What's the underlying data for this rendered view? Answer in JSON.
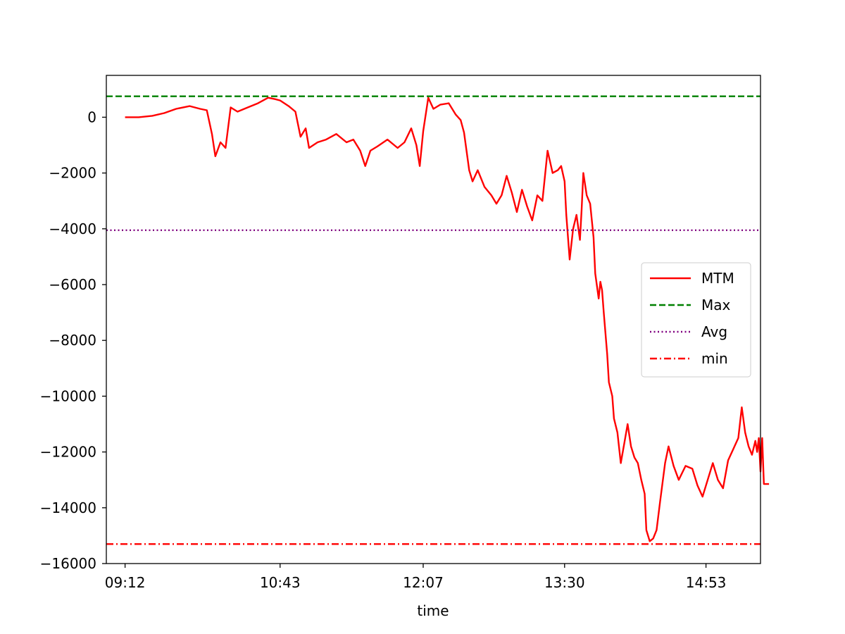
{
  "chart_data": {
    "type": "line",
    "title": "",
    "xlabel": "time",
    "ylabel": "",
    "x_range": [
      "09:01",
      "15:25"
    ],
    "ylim": [
      -16000,
      1500
    ],
    "x_ticks": [
      "09:12",
      "10:43",
      "12:07",
      "13:30",
      "14:53"
    ],
    "y_ticks": [
      0,
      -2000,
      -4000,
      -6000,
      -8000,
      -10000,
      -12000,
      -14000,
      -16000
    ],
    "y_tick_labels": [
      "0",
      "−2000",
      "−4000",
      "−6000",
      "−8000",
      "−10000",
      "−12000",
      "−14000",
      "−16000"
    ],
    "grid": false,
    "legend": {
      "placement": "center-right",
      "entries": [
        "MTM",
        "Max",
        "Avg",
        "min"
      ]
    },
    "series": [
      {
        "name": "MTM",
        "color": "#ff0000",
        "style": "solid",
        "points": [
          [
            "09:12",
            0
          ],
          [
            "09:20",
            0
          ],
          [
            "09:28",
            50
          ],
          [
            "09:35",
            150
          ],
          [
            "09:42",
            300
          ],
          [
            "09:50",
            400
          ],
          [
            "09:56",
            300
          ],
          [
            "10:00",
            250
          ],
          [
            "10:03",
            -600
          ],
          [
            "10:05",
            -1400
          ],
          [
            "10:08",
            -900
          ],
          [
            "10:11",
            -1100
          ],
          [
            "10:14",
            350
          ],
          [
            "10:18",
            200
          ],
          [
            "10:24",
            350
          ],
          [
            "10:30",
            500
          ],
          [
            "10:36",
            700
          ],
          [
            "10:40",
            650
          ],
          [
            "10:43",
            600
          ],
          [
            "10:48",
            400
          ],
          [
            "10:52",
            200
          ],
          [
            "10:55",
            -700
          ],
          [
            "10:58",
            -400
          ],
          [
            "11:00",
            -1100
          ],
          [
            "11:05",
            -900
          ],
          [
            "11:10",
            -800
          ],
          [
            "11:16",
            -600
          ],
          [
            "11:22",
            -900
          ],
          [
            "11:26",
            -800
          ],
          [
            "11:30",
            -1200
          ],
          [
            "11:33",
            -1750
          ],
          [
            "11:36",
            -1200
          ],
          [
            "11:40",
            -1050
          ],
          [
            "11:46",
            -800
          ],
          [
            "11:52",
            -1100
          ],
          [
            "11:56",
            -900
          ],
          [
            "12:00",
            -400
          ],
          [
            "12:03",
            -1000
          ],
          [
            "12:05",
            -1750
          ],
          [
            "12:07",
            -500
          ],
          [
            "12:10",
            700
          ],
          [
            "12:13",
            300
          ],
          [
            "12:17",
            450
          ],
          [
            "12:22",
            500
          ],
          [
            "12:26",
            100
          ],
          [
            "12:29",
            -100
          ],
          [
            "12:31",
            -550
          ],
          [
            "12:34",
            -1900
          ],
          [
            "12:36",
            -2300
          ],
          [
            "12:39",
            -1900
          ],
          [
            "12:43",
            -2500
          ],
          [
            "12:47",
            -2800
          ],
          [
            "12:50",
            -3100
          ],
          [
            "12:53",
            -2800
          ],
          [
            "12:56",
            -2100
          ],
          [
            "12:59",
            -2700
          ],
          [
            "13:02",
            -3400
          ],
          [
            "13:05",
            -2600
          ],
          [
            "13:08",
            -3200
          ],
          [
            "13:11",
            -3700
          ],
          [
            "13:14",
            -2800
          ],
          [
            "13:17",
            -3000
          ],
          [
            "13:20",
            -1200
          ],
          [
            "13:23",
            -2000
          ],
          [
            "13:26",
            -1900
          ],
          [
            "13:28",
            -1750
          ],
          [
            "13:30",
            -2300
          ],
          [
            "13:31",
            -3500
          ],
          [
            "13:33",
            -5100
          ],
          [
            "13:35",
            -4000
          ],
          [
            "13:37",
            -3500
          ],
          [
            "13:39",
            -4400
          ],
          [
            "13:40",
            -3300
          ],
          [
            "13:41",
            -2000
          ],
          [
            "13:43",
            -2800
          ],
          [
            "13:45",
            -3100
          ],
          [
            "13:47",
            -4300
          ],
          [
            "13:48",
            -5600
          ],
          [
            "13:50",
            -6500
          ],
          [
            "13:51",
            -5900
          ],
          [
            "13:52",
            -6200
          ],
          [
            "13:53",
            -7000
          ],
          [
            "13:55",
            -8500
          ],
          [
            "13:56",
            -9500
          ],
          [
            "13:58",
            -10000
          ],
          [
            "13:59",
            -10800
          ],
          [
            "14:01",
            -11300
          ],
          [
            "14:03",
            -12400
          ],
          [
            "14:05",
            -11700
          ],
          [
            "14:07",
            -11000
          ],
          [
            "14:09",
            -11800
          ],
          [
            "14:11",
            -12200
          ],
          [
            "14:13",
            -12400
          ],
          [
            "14:15",
            -13000
          ],
          [
            "14:17",
            -13500
          ],
          [
            "14:18",
            -14800
          ],
          [
            "14:20",
            -15200
          ],
          [
            "14:22",
            -15100
          ],
          [
            "14:24",
            -14800
          ],
          [
            "14:26",
            -13800
          ],
          [
            "14:29",
            -12400
          ],
          [
            "14:31",
            -11800
          ],
          [
            "14:34",
            -12500
          ],
          [
            "14:37",
            -13000
          ],
          [
            "14:41",
            -12500
          ],
          [
            "14:45",
            -12600
          ],
          [
            "14:48",
            -13200
          ],
          [
            "14:51",
            -13600
          ],
          [
            "14:54",
            -13000
          ],
          [
            "14:57",
            -12400
          ],
          [
            "15:00",
            -13000
          ],
          [
            "15:03",
            -13300
          ],
          [
            "15:06",
            -12300
          ],
          [
            "15:09",
            -11900
          ],
          [
            "15:12",
            -11500
          ],
          [
            "15:14",
            -10400
          ],
          [
            "15:16",
            -11300
          ],
          [
            "15:18",
            -11800
          ],
          [
            "15:20",
            -12100
          ],
          [
            "15:22",
            -11600
          ],
          [
            "15:23",
            -12000
          ],
          [
            "15:24",
            -11500
          ],
          [
            "15:25",
            -12700
          ],
          [
            "15:26",
            -11500
          ],
          [
            "15:27",
            -13150
          ],
          [
            "15:30",
            -13150
          ]
        ]
      },
      {
        "name": "Max",
        "color": "#008000",
        "style": "dashed",
        "value": 750
      },
      {
        "name": "Avg",
        "color": "#800080",
        "style": "dotted",
        "value": -4050
      },
      {
        "name": "min",
        "color": "#ff0000",
        "style": "dashdot",
        "value": -15300
      }
    ]
  }
}
